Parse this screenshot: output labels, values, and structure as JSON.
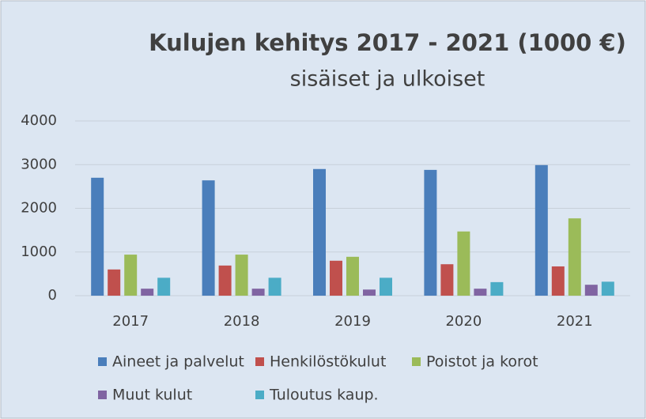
{
  "chart_data": {
    "type": "bar",
    "title": "Kulujen kehitys 2017 - 2021 (1000 €)",
    "subtitle": "sisäiset ja ulkoiset",
    "categories": [
      "2017",
      "2018",
      "2019",
      "2020",
      "2021"
    ],
    "series": [
      {
        "name": "Aineet ja palvelut",
        "color": "#4a7ebb",
        "values": [
          2700,
          2640,
          2900,
          2880,
          2990
        ]
      },
      {
        "name": "Henkilöstökulut",
        "color": "#c0504d",
        "values": [
          600,
          690,
          800,
          720,
          670
        ]
      },
      {
        "name": "Poistot ja korot",
        "color": "#9bbb59",
        "values": [
          940,
          940,
          890,
          1470,
          1770
        ]
      },
      {
        "name": "Muut kulut",
        "color": "#8064a2",
        "values": [
          160,
          160,
          140,
          160,
          250
        ]
      },
      {
        "name": "Tuloutus kaup.",
        "color": "#4bacc6",
        "values": [
          410,
          410,
          410,
          310,
          320
        ]
      }
    ],
    "ylim": [
      0,
      4000
    ],
    "yticks": [
      0,
      1000,
      2000,
      3000,
      4000
    ],
    "grid": true,
    "legend": "bottom"
  }
}
